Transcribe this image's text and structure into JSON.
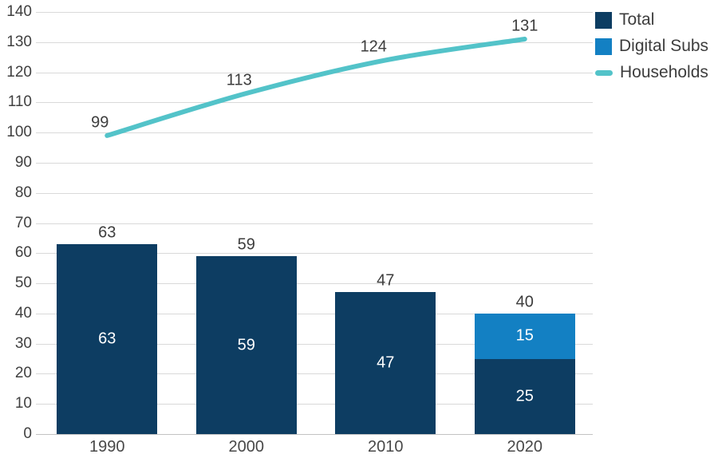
{
  "chart_data": {
    "type": "bar",
    "subtype": "stacked-bar-with-line-overlay",
    "categories": [
      "1990",
      "2000",
      "2010",
      "2020"
    ],
    "series": [
      {
        "name": "Total",
        "type": "bar",
        "color": "#0d3d62",
        "values": [
          63,
          59,
          47,
          25
        ]
      },
      {
        "name": "Digital Subs",
        "type": "bar",
        "color": "#1380c3",
        "values": [
          0,
          0,
          0,
          15
        ]
      },
      {
        "name": "Households",
        "type": "line",
        "color": "#53c3c9",
        "values": [
          99,
          113,
          124,
          131
        ]
      }
    ],
    "bar_total_labels": [
      "63",
      "59",
      "47",
      "40"
    ],
    "in_bar_segment_labels": [
      [
        "63"
      ],
      [
        "59"
      ],
      [
        "47"
      ],
      [
        "25",
        "15"
      ]
    ],
    "line_point_labels": [
      "99",
      "113",
      "124",
      "131"
    ],
    "title": "",
    "xlabel": "",
    "ylabel": "",
    "ylim": [
      0,
      140
    ],
    "yticks": [
      0,
      10,
      20,
      30,
      40,
      50,
      60,
      70,
      80,
      90,
      100,
      110,
      120,
      130,
      140
    ],
    "grid": "horizontal",
    "legend_position": "top-right",
    "legend": [
      {
        "label": "Total",
        "marker": "square",
        "color": "#0d3d62"
      },
      {
        "label": "Digital Subs",
        "marker": "square",
        "color": "#1380c3"
      },
      {
        "label": "Households",
        "marker": "line",
        "color": "#53c3c9"
      }
    ]
  },
  "colors": {
    "background": "#ffffff",
    "gridline": "#d9d9d9",
    "axis_line": "#c3c3c3",
    "tick_text": "#404040",
    "label_text": "#3d3d3d",
    "in_bar_text": "#ffffff"
  }
}
